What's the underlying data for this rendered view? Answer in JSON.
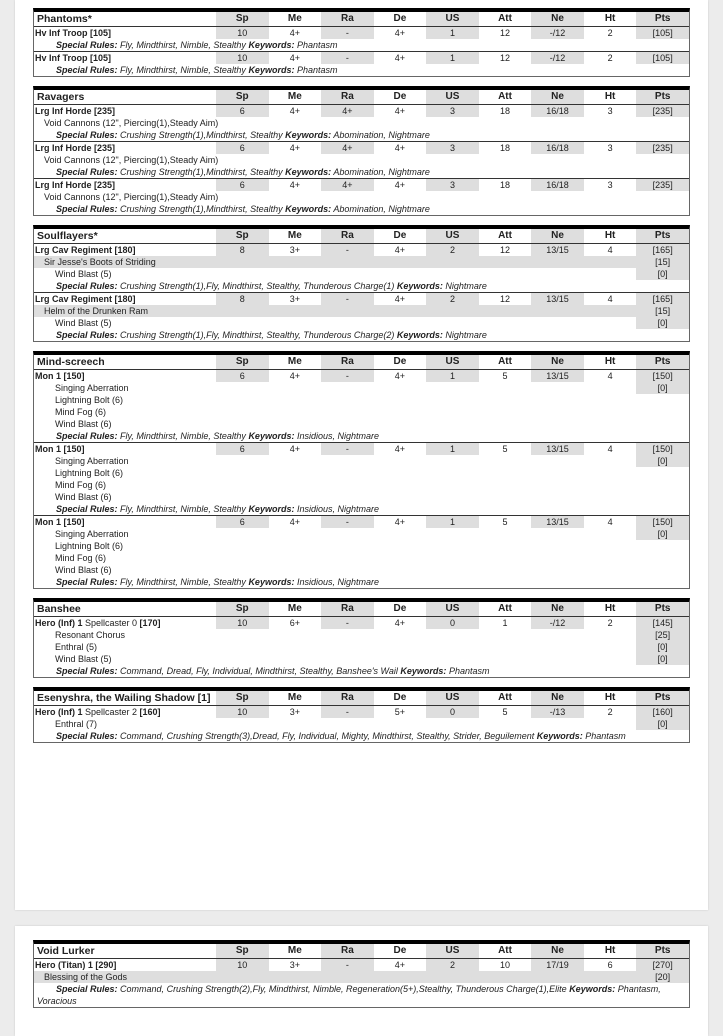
{
  "columns": [
    "Sp",
    "Me",
    "Ra",
    "De",
    "US",
    "Att",
    "Ne",
    "Ht",
    "Pts"
  ],
  "labels": {
    "special_rules": "Special Rules:",
    "keywords": "Keywords:"
  },
  "pages": [
    {
      "sections": [
        {
          "title": "Phantoms*",
          "units": [
            {
              "name": [
                "Hv Inf Troop [105]"
              ],
              "stats": [
                "10",
                "4+",
                "-",
                "4+",
                "1",
                "12",
                "-/12",
                "2",
                "[105]"
              ],
              "lines": [],
              "special_rules": "Fly, Mindthirst, Nimble, Stealthy",
              "keywords": "Phantasm"
            },
            {
              "name": [
                "Hv Inf Troop [105]"
              ],
              "stats": [
                "10",
                "4+",
                "-",
                "4+",
                "1",
                "12",
                "-/12",
                "2",
                "[105]"
              ],
              "lines": [],
              "special_rules": "Fly, Mindthirst, Nimble, Stealthy",
              "keywords": "Phantasm"
            }
          ]
        },
        {
          "title": "Ravagers",
          "units": [
            {
              "name": [
                "Lrg Inf Horde [235]"
              ],
              "stats": [
                "6",
                "4+",
                "4+",
                "4+",
                "3",
                "18",
                "16/18",
                "3",
                "[235]"
              ],
              "lines": [
                {
                  "text": "Void Cannons (12\", Piercing(1),Steady Aim)",
                  "pts": "",
                  "indent": false,
                  "shaded": false,
                  "nopts": true
                }
              ],
              "special_rules": "Crushing Strength(1),Mindthirst, Stealthy",
              "keywords": "Abomination, Nightmare"
            },
            {
              "name": [
                "Lrg Inf Horde [235]"
              ],
              "stats": [
                "6",
                "4+",
                "4+",
                "4+",
                "3",
                "18",
                "16/18",
                "3",
                "[235]"
              ],
              "lines": [
                {
                  "text": "Void Cannons (12\", Piercing(1),Steady Aim)",
                  "pts": "",
                  "indent": false,
                  "shaded": false,
                  "nopts": true
                }
              ],
              "special_rules": "Crushing Strength(1),Mindthirst, Stealthy",
              "keywords": "Abomination, Nightmare"
            },
            {
              "name": [
                "Lrg Inf Horde [235]"
              ],
              "stats": [
                "6",
                "4+",
                "4+",
                "4+",
                "3",
                "18",
                "16/18",
                "3",
                "[235]"
              ],
              "lines": [
                {
                  "text": "Void Cannons (12\", Piercing(1),Steady Aim)",
                  "pts": "",
                  "indent": false,
                  "shaded": false,
                  "nopts": true
                }
              ],
              "special_rules": "Crushing Strength(1),Mindthirst, Stealthy",
              "keywords": "Abomination, Nightmare"
            }
          ]
        },
        {
          "title": "Soulflayers*",
          "units": [
            {
              "name": [
                "Lrg Cav Regiment [180]"
              ],
              "stats": [
                "8",
                "3+",
                "-",
                "4+",
                "2",
                "12",
                "13/15",
                "4",
                "[165]"
              ],
              "lines": [
                {
                  "text": "Sir Jesse's Boots of Striding",
                  "pts": "[15]",
                  "indent": false,
                  "shaded": true
                },
                {
                  "text": "Wind Blast (5)",
                  "pts": "[0]",
                  "indent": true,
                  "shaded": false
                }
              ],
              "special_rules": "Crushing Strength(1),Fly, Mindthirst, Stealthy, Thunderous Charge(1)",
              "keywords": "Nightmare"
            },
            {
              "name": [
                "Lrg Cav Regiment [180]"
              ],
              "stats": [
                "8",
                "3+",
                "-",
                "4+",
                "2",
                "12",
                "13/15",
                "4",
                "[165]"
              ],
              "lines": [
                {
                  "text": "Helm of the Drunken Ram",
                  "pts": "[15]",
                  "indent": false,
                  "shaded": true
                },
                {
                  "text": "Wind Blast (5)",
                  "pts": "[0]",
                  "indent": true,
                  "shaded": false
                }
              ],
              "special_rules": "Crushing Strength(1),Fly, Mindthirst, Stealthy, Thunderous Charge(2)",
              "keywords": "Nightmare"
            }
          ]
        },
        {
          "title": "Mind-screech",
          "units": [
            {
              "name": [
                "Mon 1 [150]"
              ],
              "stats": [
                "6",
                "4+",
                "-",
                "4+",
                "1",
                "5",
                "13/15",
                "4",
                "[150]"
              ],
              "lines": [
                {
                  "text": "Singing Aberration",
                  "pts": "[0]",
                  "indent": true,
                  "shaded": false
                },
                {
                  "text": "Lightning Bolt (6)",
                  "pts": "",
                  "indent": true,
                  "shaded": false,
                  "nopts": true
                },
                {
                  "text": "Mind Fog (6)",
                  "pts": "",
                  "indent": true,
                  "shaded": false,
                  "nopts": true
                },
                {
                  "text": "Wind Blast (6)",
                  "pts": "",
                  "indent": true,
                  "shaded": false,
                  "nopts": true
                }
              ],
              "special_rules": "Fly, Mindthirst, Nimble, Stealthy",
              "keywords": "Insidious, Nightmare"
            },
            {
              "name": [
                "Mon 1 [150]"
              ],
              "stats": [
                "6",
                "4+",
                "-",
                "4+",
                "1",
                "5",
                "13/15",
                "4",
                "[150]"
              ],
              "lines": [
                {
                  "text": "Singing Aberration",
                  "pts": "[0]",
                  "indent": true,
                  "shaded": false
                },
                {
                  "text": "Lightning Bolt (6)",
                  "pts": "",
                  "indent": true,
                  "shaded": false,
                  "nopts": true
                },
                {
                  "text": "Mind Fog (6)",
                  "pts": "",
                  "indent": true,
                  "shaded": false,
                  "nopts": true
                },
                {
                  "text": "Wind Blast (6)",
                  "pts": "",
                  "indent": true,
                  "shaded": false,
                  "nopts": true
                }
              ],
              "special_rules": "Fly, Mindthirst, Nimble, Stealthy",
              "keywords": "Insidious, Nightmare"
            },
            {
              "name": [
                "Mon 1 [150]"
              ],
              "stats": [
                "6",
                "4+",
                "-",
                "4+",
                "1",
                "5",
                "13/15",
                "4",
                "[150]"
              ],
              "lines": [
                {
                  "text": "Singing Aberration",
                  "pts": "[0]",
                  "indent": true,
                  "shaded": false
                },
                {
                  "text": "Lightning Bolt (6)",
                  "pts": "",
                  "indent": true,
                  "shaded": false,
                  "nopts": true
                },
                {
                  "text": "Mind Fog (6)",
                  "pts": "",
                  "indent": true,
                  "shaded": false,
                  "nopts": true
                },
                {
                  "text": "Wind Blast (6)",
                  "pts": "",
                  "indent": true,
                  "shaded": false,
                  "nopts": true
                }
              ],
              "special_rules": "Fly, Mindthirst, Nimble, Stealthy",
              "keywords": "Insidious, Nightmare"
            }
          ]
        },
        {
          "title": "Banshee",
          "units": [
            {
              "name": [
                "Hero (Inf) 1",
                " Spellcaster 0 ",
                " [170]"
              ],
              "stats": [
                "10",
                "6+",
                "-",
                "4+",
                "0",
                "1",
                "-/12",
                "2",
                "[145]"
              ],
              "lines": [
                {
                  "text": "Resonant Chorus",
                  "pts": "[25]",
                  "indent": true,
                  "shaded": false
                },
                {
                  "text": "Enthral (5)",
                  "pts": "[0]",
                  "indent": true,
                  "shaded": false
                },
                {
                  "text": "Wind Blast (5)",
                  "pts": "[0]",
                  "indent": true,
                  "shaded": false
                }
              ],
              "special_rules": "Command, Dread, Fly, Individual, Mindthirst, Stealthy, Banshee's Wail",
              "keywords": "Phantasm"
            }
          ]
        },
        {
          "title": "Esenyshra, the Wailing Shadow [1]",
          "units": [
            {
              "name": [
                "Hero (Inf) 1",
                " Spellcaster 2 ",
                " [160]"
              ],
              "stats": [
                "10",
                "3+",
                "-",
                "5+",
                "0",
                "5",
                "-/13",
                "2",
                "[160]"
              ],
              "lines": [
                {
                  "text": "Enthral (7)",
                  "pts": "[0]",
                  "indent": true,
                  "shaded": false
                }
              ],
              "special_rules": "Command, Crushing Strength(3),Dread, Fly, Individual, Mighty, Mindthirst, Stealthy, Strider, Beguilement",
              "keywords": "Phantasm"
            }
          ]
        }
      ]
    },
    {
      "sections": [
        {
          "title": "Void Lurker",
          "units": [
            {
              "name": [
                "Hero (Titan) 1 [290]"
              ],
              "stats": [
                "10",
                "3+",
                "-",
                "4+",
                "2",
                "10",
                "17/19",
                "6",
                "[270]"
              ],
              "lines": [
                {
                  "text": "Blessing of the Gods",
                  "pts": "[20]",
                  "indent": false,
                  "shaded": true
                }
              ],
              "special_rules": "Command, Crushing Strength(2),Fly, Mindthirst, Nimble, Regeneration(5+),Stealthy, Thunderous Charge(1),Elite",
              "keywords": "Phantasm, Voracious"
            }
          ]
        }
      ]
    }
  ]
}
